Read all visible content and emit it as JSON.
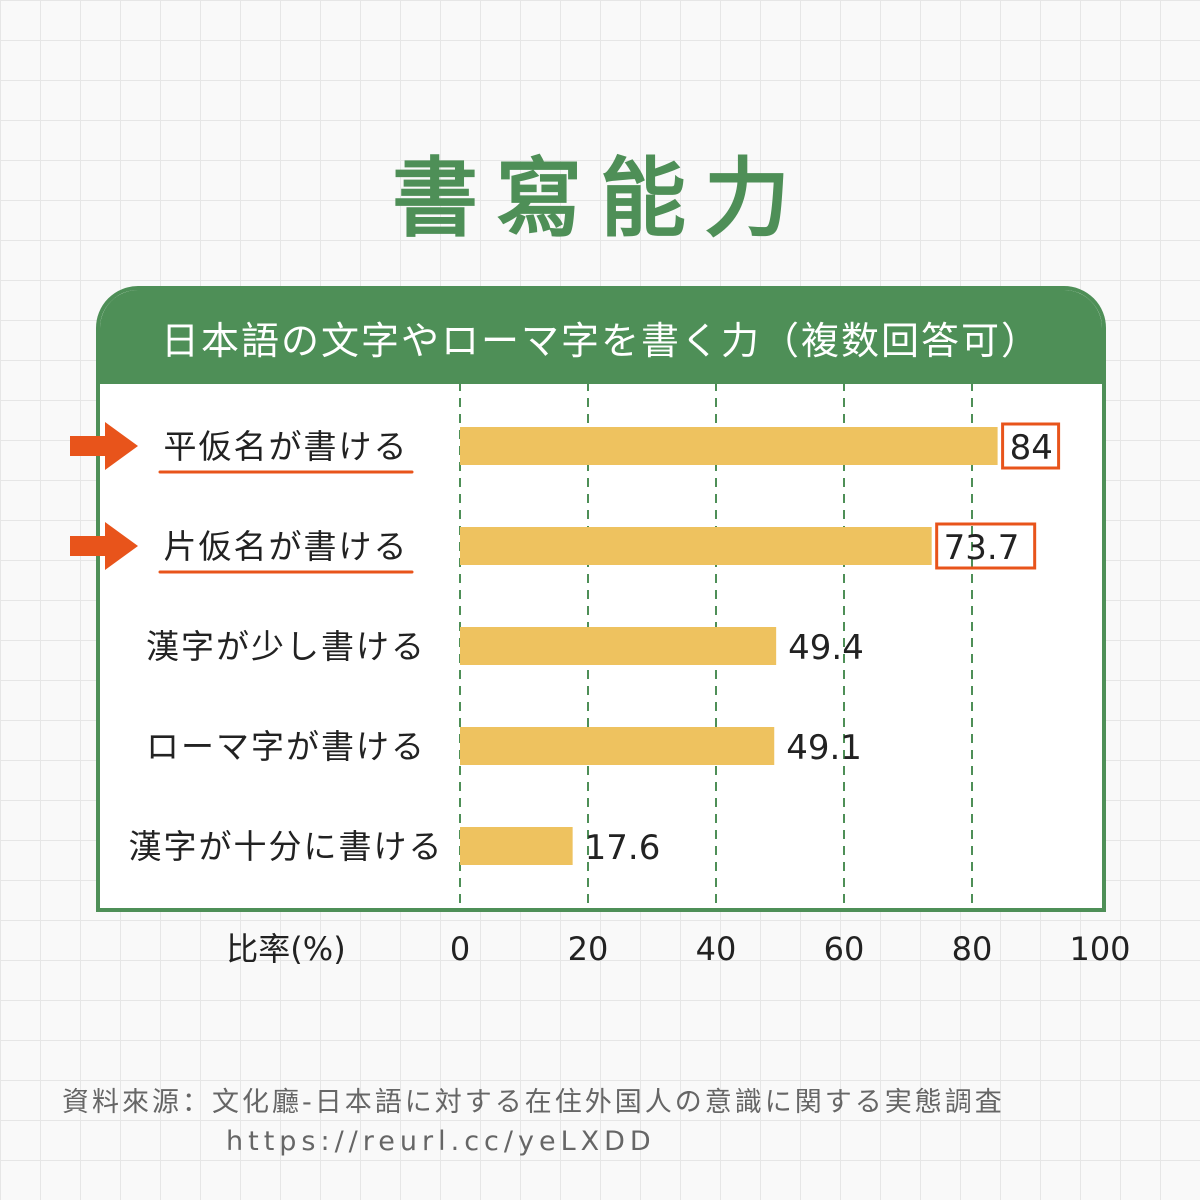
{
  "title": "書寫能力",
  "panel_title": "日本語の文字やローマ字を書く力（複数回答可）",
  "chart_data": {
    "type": "bar",
    "orientation": "horizontal",
    "categories": [
      "平仮名が書ける",
      "片仮名が書ける",
      "漢字が少し書ける",
      "ローマ字が書ける",
      "漢字が十分に書ける"
    ],
    "values": [
      84,
      73.7,
      49.4,
      49.1,
      17.6
    ],
    "value_labels": [
      "84",
      "73.7",
      "49.4",
      "49.1",
      "17.6"
    ],
    "highlighted": [
      true,
      true,
      false,
      false,
      false
    ],
    "xlabel": "比率(%)",
    "xlim": [
      0,
      100
    ],
    "xticks": [
      "0",
      "20",
      "40",
      "60",
      "80",
      "100"
    ],
    "grid": "vertical dashed",
    "colors": {
      "bar": "#eec25f",
      "grid": "#4e8f57",
      "highlight": "#e8541b",
      "theme": "#4e8f57"
    }
  },
  "source": "資料來源：文化廳-日本語に対する在住外国人の意識に関する実態調査",
  "source_url": "https://reurl.cc/yeLXDD"
}
